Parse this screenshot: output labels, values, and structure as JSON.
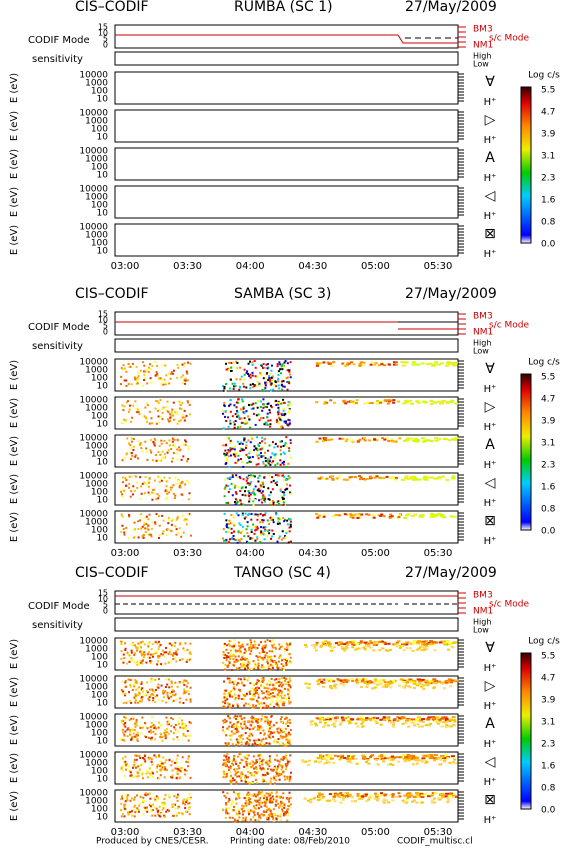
{
  "panels": [
    {
      "instrument": "CIS–CODIF",
      "spacecraft": "RUMBA (SC 1)",
      "date": "27/May/2009"
    },
    {
      "instrument": "CIS–CODIF",
      "spacecraft": "SAMBA (SC 3)",
      "date": "27/May/2009"
    },
    {
      "instrument": "CIS–CODIF",
      "spacecraft": "TANGO (SC 4)",
      "date": "27/May/2009"
    }
  ],
  "mode_label": "CODIF Mode",
  "mode_ticks": [
    "15",
    "10",
    "5",
    "0"
  ],
  "mode_names": [
    "BM3",
    "NM1"
  ],
  "sc_mode_label": "s/c Mode",
  "sensitivity_label": "sensitivity",
  "sensitivity_levels": [
    "High",
    "Low"
  ],
  "energy_label": "E (eV)",
  "energy_ticks": [
    "10000",
    "1000",
    "100",
    "10"
  ],
  "directions": [
    "∀",
    "▷",
    "A",
    "◁",
    "⊠"
  ],
  "species": "H⁺",
  "colorbar_label": "Log c/s",
  "colorbar_ticks": [
    "5.5",
    "4.7",
    "3.9",
    "3.1",
    "2.3",
    "1.6",
    "0.8",
    "0.0"
  ],
  "time_ticks": [
    "03:00",
    "03:30",
    "04:00",
    "04:30",
    "05:00",
    "05:30"
  ],
  "footer": [
    "Produced by CNES/CESR.",
    "Printing date: 08/Feb/2010",
    "CODIF_multisc.cl"
  ]
}
